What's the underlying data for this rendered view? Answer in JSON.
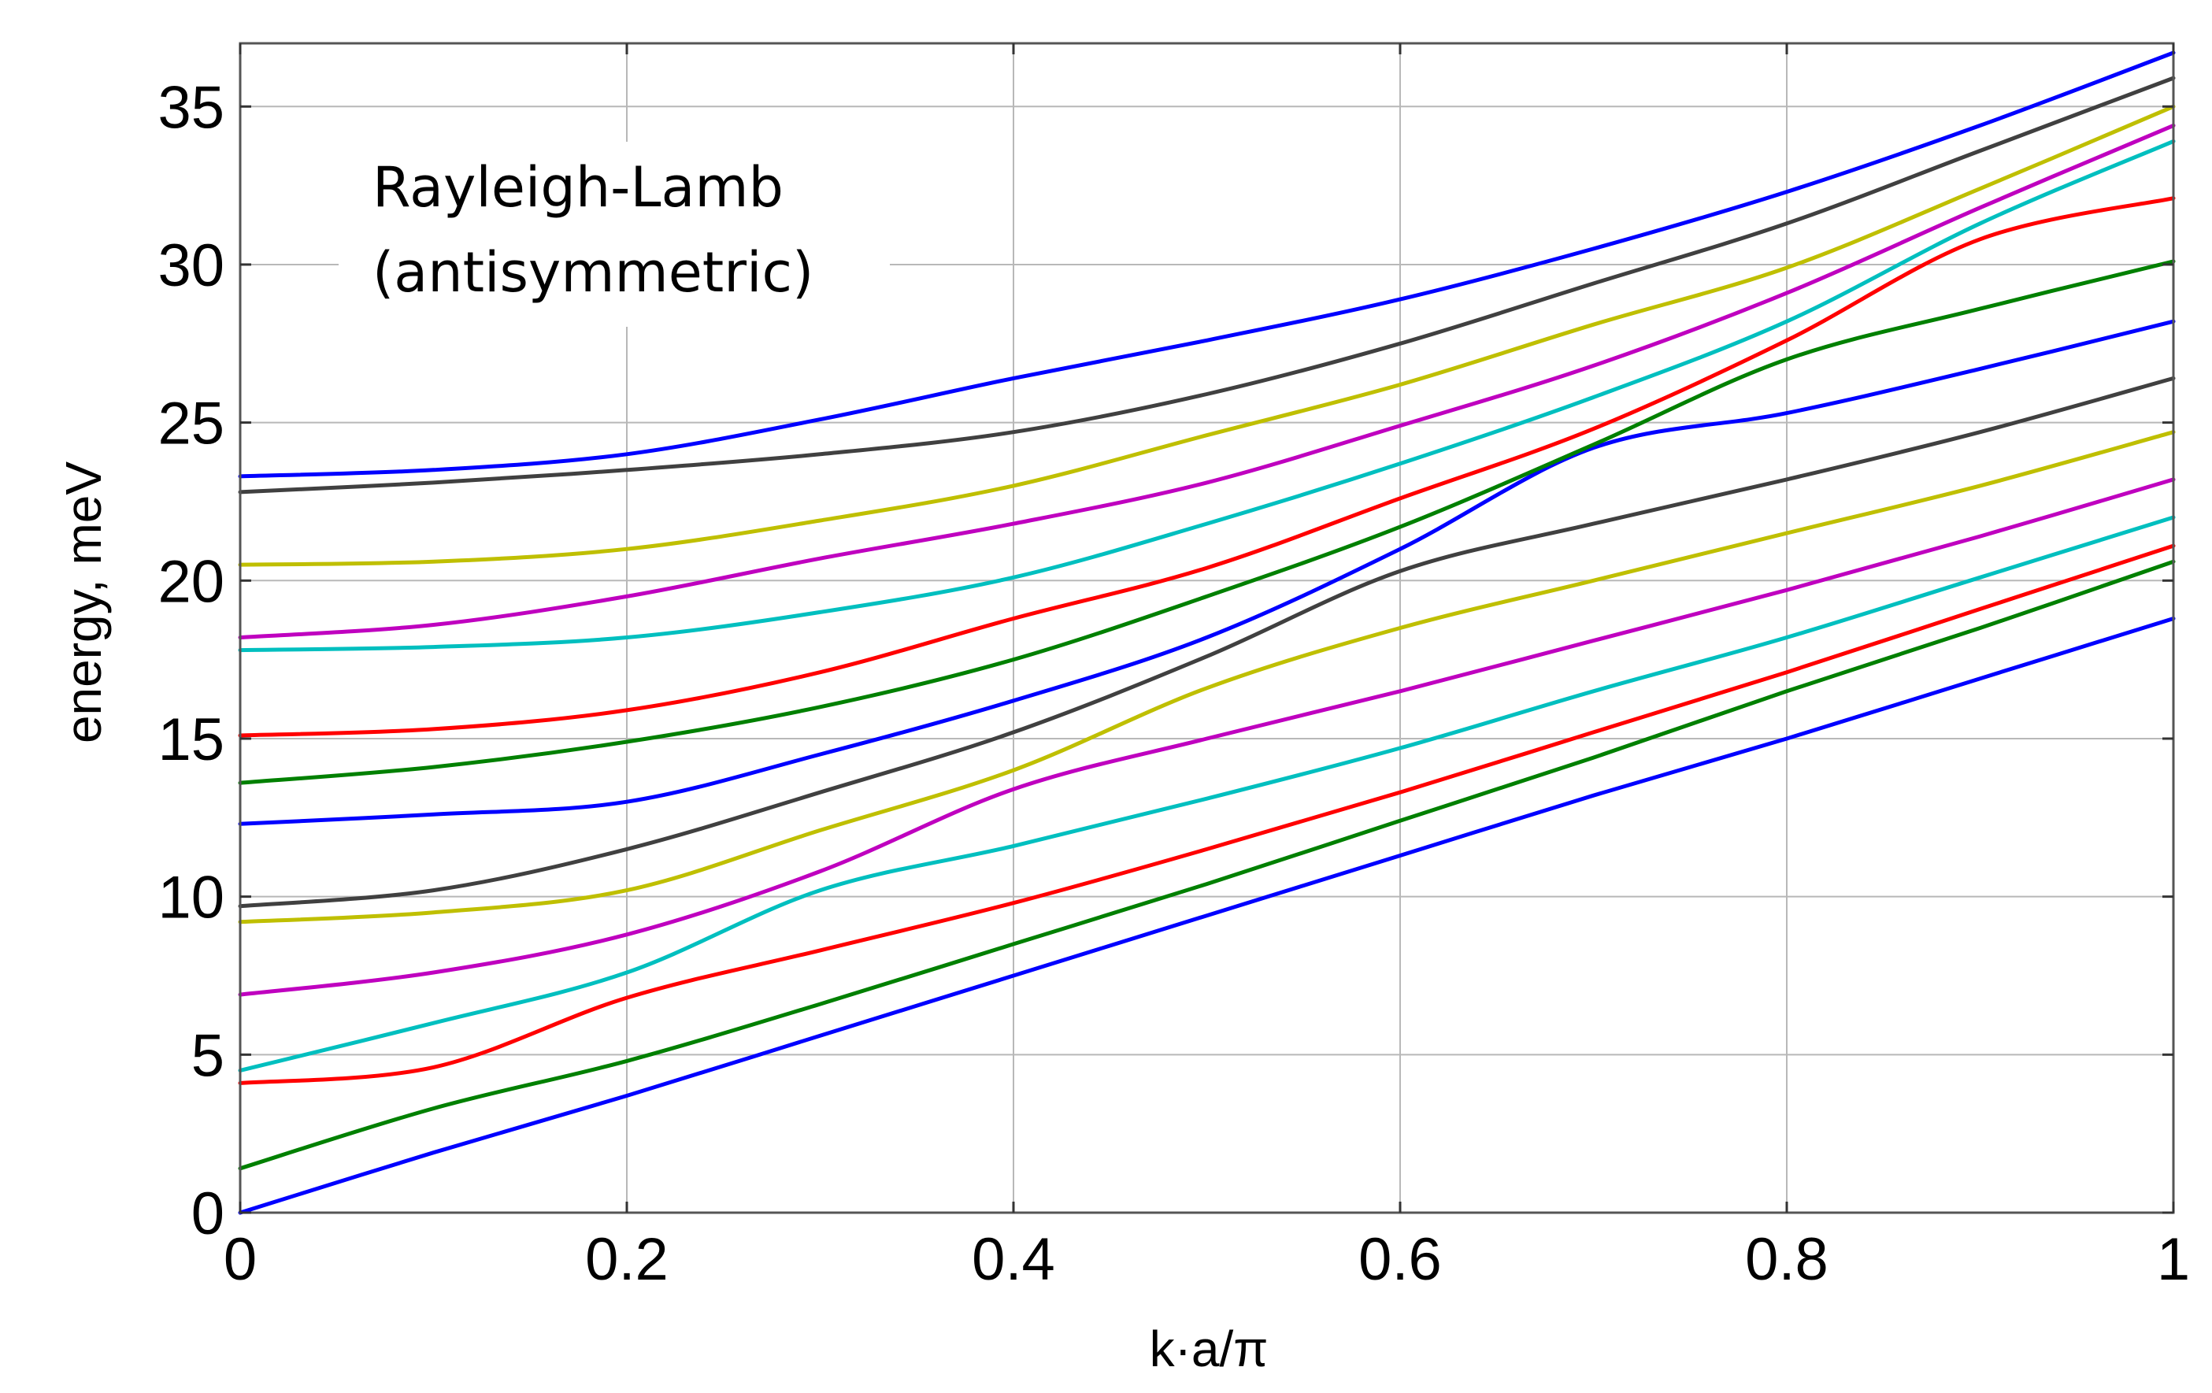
{
  "chart_data": {
    "type": "line",
    "title": "",
    "annotation": [
      "Rayleigh-Lamb",
      "(antisymmetric)"
    ],
    "xlabel": "k·a/π",
    "ylabel": "energy, meV",
    "xlim": [
      0,
      1
    ],
    "ylim": [
      0,
      37
    ],
    "xticks": [
      0,
      0.2,
      0.4,
      0.6,
      0.8,
      1
    ],
    "xtick_labels": [
      "0",
      "0.2",
      "0.4",
      "0.6",
      "0.8",
      "1"
    ],
    "yticks": [
      0,
      5,
      10,
      15,
      20,
      25,
      30,
      35
    ],
    "ytick_labels": [
      "0",
      "5",
      "10",
      "15",
      "20",
      "25",
      "30",
      "35"
    ],
    "grid": true,
    "x": [
      0,
      0.1,
      0.2,
      0.3,
      0.4,
      0.5,
      0.6,
      0.7,
      0.8,
      0.9,
      1.0
    ],
    "series": [
      {
        "color": "#0000ff",
        "values": [
          0,
          1.9,
          3.7,
          5.6,
          7.5,
          9.4,
          11.3,
          13.2,
          15.0,
          16.9,
          18.8
        ]
      },
      {
        "color": "#008000",
        "values": [
          1.4,
          3.3,
          4.8,
          6.6,
          8.5,
          10.4,
          12.4,
          14.4,
          16.5,
          18.5,
          20.6
        ]
      },
      {
        "color": "#ff0000",
        "values": [
          4.1,
          4.6,
          6.8,
          8.3,
          9.8,
          11.5,
          13.3,
          15.2,
          17.1,
          19.1,
          21.1
        ]
      },
      {
        "color": "#00bfbf",
        "values": [
          4.5,
          6.0,
          7.6,
          10.2,
          11.6,
          13.1,
          14.7,
          16.5,
          18.2,
          20.1,
          22.0
        ]
      },
      {
        "color": "#bf00bf",
        "values": [
          6.9,
          7.6,
          8.8,
          10.8,
          13.4,
          15.0,
          16.5,
          18.1,
          19.7,
          21.4,
          23.2
        ]
      },
      {
        "color": "#bfbf00",
        "values": [
          9.2,
          9.5,
          10.2,
          12.1,
          14.0,
          16.6,
          18.5,
          20.0,
          21.5,
          23.0,
          24.7
        ]
      },
      {
        "color": "#404040",
        "values": [
          9.7,
          10.2,
          11.5,
          13.3,
          15.2,
          17.6,
          20.3,
          21.8,
          23.2,
          24.7,
          26.4
        ]
      },
      {
        "color": "#0000ff",
        "values": [
          12.3,
          12.6,
          13.0,
          14.5,
          16.2,
          18.2,
          21.0,
          24.2,
          25.3,
          26.7,
          28.2
        ]
      },
      {
        "color": "#008000",
        "values": [
          13.6,
          14.1,
          14.9,
          16.0,
          17.5,
          19.5,
          21.7,
          24.3,
          27.0,
          28.6,
          30.1
        ]
      },
      {
        "color": "#ff0000",
        "values": [
          15.1,
          15.3,
          15.9,
          17.1,
          18.8,
          20.4,
          22.6,
          24.8,
          27.6,
          30.8,
          32.1
        ]
      },
      {
        "color": "#00bfbf",
        "values": [
          17.8,
          17.9,
          18.2,
          19.0,
          20.1,
          21.8,
          23.7,
          25.8,
          28.2,
          31.3,
          33.9
        ]
      },
      {
        "color": "#bf00bf",
        "values": [
          18.2,
          18.6,
          19.5,
          20.7,
          21.8,
          23.1,
          24.9,
          26.8,
          29.1,
          31.8,
          34.4
        ]
      },
      {
        "color": "#bfbf00",
        "values": [
          20.5,
          20.6,
          21.0,
          21.9,
          23.0,
          24.6,
          26.2,
          28.1,
          29.9,
          32.4,
          35.0
        ]
      },
      {
        "color": "#404040",
        "values": [
          22.8,
          23.1,
          23.5,
          24.0,
          24.7,
          25.9,
          27.5,
          29.4,
          31.3,
          33.6,
          35.9
        ]
      },
      {
        "color": "#0000ff",
        "values": [
          23.3,
          23.5,
          24.0,
          25.1,
          26.4,
          27.6,
          28.9,
          30.5,
          32.3,
          34.4,
          36.7
        ]
      }
    ]
  }
}
